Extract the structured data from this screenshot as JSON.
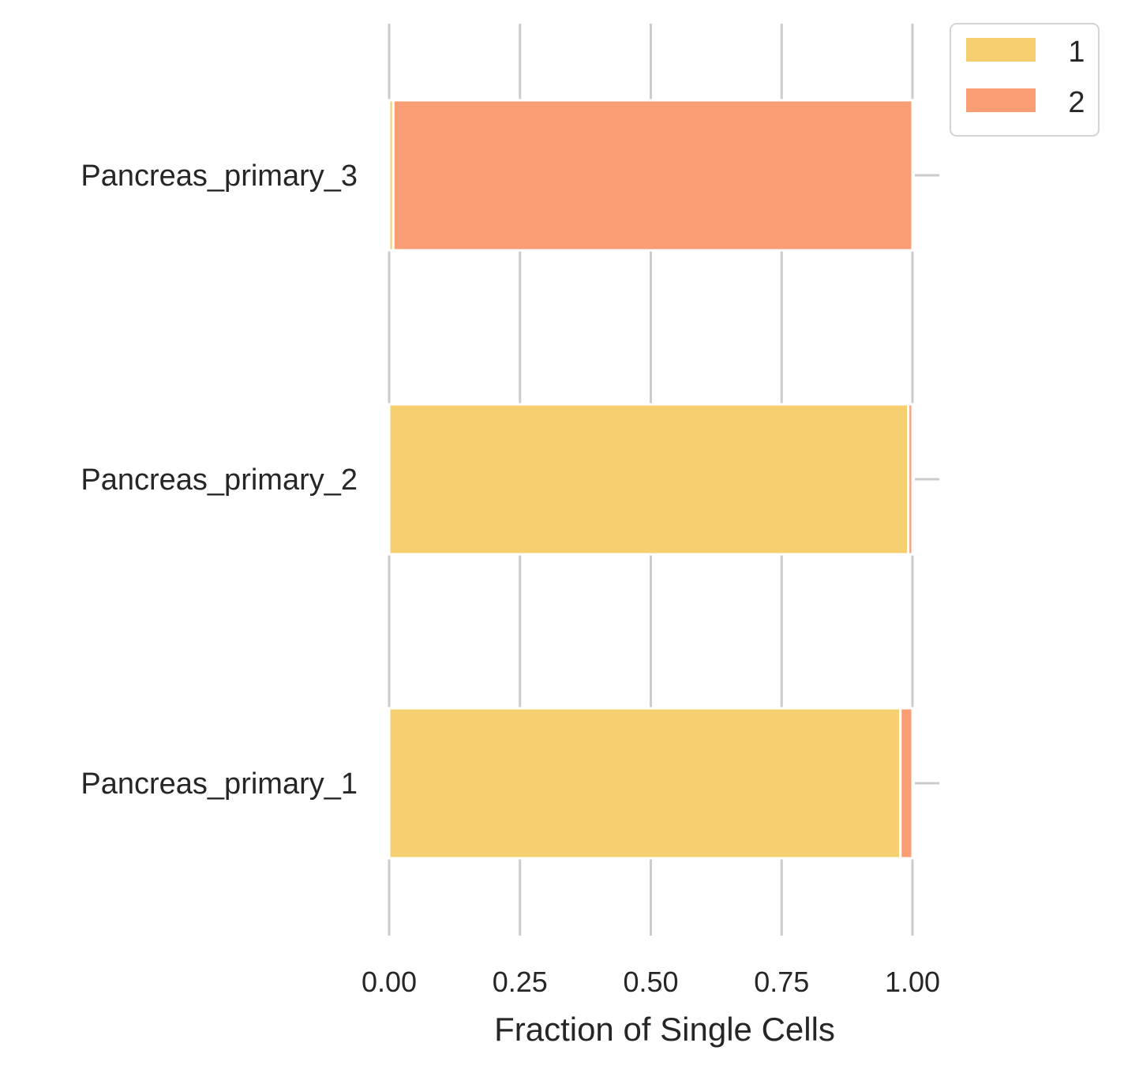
{
  "chart_data": {
    "type": "bar",
    "orientation": "horizontal",
    "stacked": true,
    "categories": [
      "Pancreas_primary_3",
      "Pancreas_primary_2",
      "Pancreas_primary_1"
    ],
    "series": [
      {
        "name": "1",
        "color": "#f5cf70",
        "values": [
          0.008,
          0.992,
          0.977
        ]
      },
      {
        "name": "2",
        "color": "#f99d74",
        "values": [
          0.992,
          0.008,
          0.023
        ]
      }
    ],
    "xlabel": "Fraction of Single Cells",
    "ylabel": "",
    "xlim": [
      0,
      1.05
    ],
    "xticks": [
      "0.00",
      "0.25",
      "0.50",
      "0.75",
      "1.00"
    ],
    "xtick_values": [
      0,
      0.25,
      0.5,
      0.75,
      1.0
    ],
    "grid": "vertical",
    "legend_position": "outside-top-right"
  }
}
